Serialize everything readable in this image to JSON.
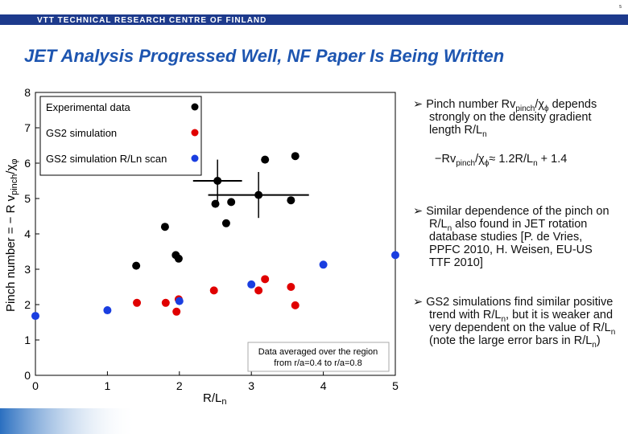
{
  "header": {
    "organization": "VTT TECHNICAL RESEARCH CENTRE OF FINLAND",
    "page_number": "5"
  },
  "title": "JET Analysis Progressed Well, NF Paper Is Being Written",
  "chart_data": {
    "type": "scatter",
    "xlabel": [
      "R/L",
      "n"
    ],
    "ylabel": [
      "Pinch number = − R v",
      "pinch",
      "/χ",
      "φ"
    ],
    "xlim": [
      0,
      5
    ],
    "ylim": [
      0,
      8
    ],
    "xticks": [
      0,
      1,
      2,
      3,
      4,
      5
    ],
    "yticks": [
      0,
      1,
      2,
      3,
      4,
      5,
      6,
      7,
      8
    ],
    "legend": "upper left",
    "annotation": [
      "Data averaged over the region",
      "from r/a=0.4 to r/a=0.8"
    ],
    "series": [
      {
        "name": "Experimental data",
        "color": "#000000",
        "x": [
          1.4,
          1.8,
          1.95,
          1.99,
          2.5,
          2.53,
          2.65,
          2.72,
          3.1,
          3.19,
          3.55,
          3.61
        ],
        "values": [
          3.1,
          4.2,
          3.4,
          3.3,
          4.85,
          5.5,
          4.3,
          4.9,
          5.1,
          6.1,
          4.95,
          6.2
        ],
        "xerr": [
          null,
          null,
          null,
          null,
          null,
          0.34,
          null,
          null,
          0.7,
          null,
          null,
          null
        ],
        "yerr": [
          null,
          null,
          null,
          null,
          null,
          0.6,
          null,
          null,
          0.65,
          null,
          null,
          null
        ]
      },
      {
        "name": "GS2 simulation",
        "color": "#e00000",
        "x": [
          1.41,
          1.81,
          1.96,
          1.99,
          2.48,
          3.1,
          3.19,
          3.55,
          3.61
        ],
        "values": [
          2.05,
          2.05,
          1.8,
          2.15,
          2.4,
          2.4,
          2.72,
          2.5,
          1.98
        ]
      },
      {
        "name": "GS2 simulation R/Ln scan",
        "color": "#1a3ee0",
        "x": [
          0,
          1,
          2,
          3,
          4,
          5
        ],
        "values": [
          1.68,
          1.84,
          2.1,
          2.57,
          3.13,
          3.4
        ]
      }
    ]
  },
  "bullets": [
    [
      "Pinch number Rv",
      "pinch",
      "/χ",
      "ϕ",
      " depends strongly on the density gradient length R/L",
      "n"
    ],
    [
      "Similar dependence of the pinch on R/L",
      "n",
      " also found in JET rotation database studies [P. de Vries, PPFC 2010, H. Weisen, EU-US TTF 2010]"
    ],
    [
      "GS2 simulations find similar positive trend with R/L",
      "n",
      ", but it is weaker and very dependent on the value of R/L",
      "n",
      " (note the large error bars in R/L",
      "n",
      ")"
    ]
  ],
  "formula": [
    "−Rv",
    "pinch",
    "/χ",
    "ϕ",
    "≈ 1.2R/L",
    "n",
    " + 1.4"
  ]
}
